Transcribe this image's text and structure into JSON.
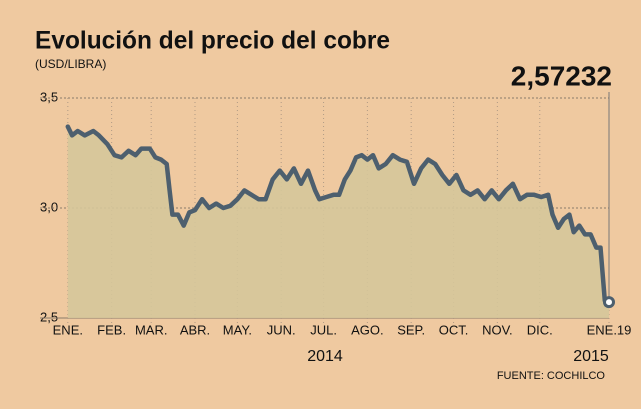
{
  "chart_data": {
    "type": "area",
    "title": "Evolución del precio del cobre",
    "subtitle": "(USD/LIBRA)",
    "source": "FUENTE: COCHILCO",
    "year_labels": [
      "2014",
      "2015"
    ],
    "color": "#4d5f6e",
    "fill": "#d5c69a",
    "grid": true,
    "x": [
      0,
      3,
      7,
      12,
      18,
      22,
      28,
      33,
      38,
      43,
      48,
      52,
      58,
      62,
      66,
      70,
      72,
      74,
      78,
      82,
      86,
      90,
      95,
      100,
      105,
      110,
      115,
      120,
      125,
      130,
      135,
      140,
      145,
      150,
      155,
      160,
      165,
      170,
      175,
      178,
      183,
      188,
      192,
      196,
      200,
      204,
      208,
      212,
      216,
      220,
      225,
      230,
      235,
      240,
      245,
      250,
      255,
      260,
      265,
      270,
      275,
      280,
      285,
      290,
      295,
      300,
      305,
      310,
      315,
      320,
      325,
      330,
      335,
      340,
      343,
      347,
      351,
      355,
      358,
      362,
      366,
      370,
      374,
      377,
      380,
      381,
      383
    ],
    "values": [
      3.37,
      3.33,
      3.35,
      3.33,
      3.35,
      3.33,
      3.29,
      3.24,
      3.23,
      3.26,
      3.24,
      3.27,
      3.27,
      3.23,
      3.22,
      3.2,
      3.08,
      2.97,
      2.97,
      2.92,
      2.98,
      2.99,
      3.04,
      3.0,
      3.02,
      3.0,
      3.01,
      3.04,
      3.08,
      3.06,
      3.04,
      3.04,
      3.13,
      3.17,
      3.13,
      3.18,
      3.11,
      3.17,
      3.08,
      3.04,
      3.05,
      3.06,
      3.06,
      3.13,
      3.17,
      3.23,
      3.24,
      3.22,
      3.24,
      3.18,
      3.2,
      3.24,
      3.22,
      3.21,
      3.11,
      3.18,
      3.22,
      3.2,
      3.15,
      3.11,
      3.15,
      3.08,
      3.06,
      3.08,
      3.04,
      3.08,
      3.04,
      3.08,
      3.11,
      3.04,
      3.06,
      3.06,
      3.05,
      3.06,
      2.97,
      2.91,
      2.95,
      2.97,
      2.89,
      2.92,
      2.88,
      2.88,
      2.82,
      2.82,
      2.58,
      2.56,
      2.57232
    ],
    "value_labels": [
      null,
      null,
      null,
      null,
      null,
      null,
      null,
      null,
      null,
      null,
      null,
      null,
      null,
      null,
      null,
      null,
      null,
      null,
      null,
      null,
      null,
      null,
      null,
      null,
      null,
      null,
      null,
      null,
      null,
      null,
      null,
      null,
      null,
      null,
      null,
      null,
      null,
      null,
      null,
      null,
      null,
      null,
      null,
      null,
      null,
      null,
      null,
      null,
      null,
      null,
      null,
      null,
      null,
      null,
      null,
      null,
      null,
      null,
      null,
      null,
      null,
      null,
      null,
      null,
      null,
      null,
      null,
      null,
      null,
      null,
      null,
      null,
      null,
      null,
      null,
      null,
      null,
      null,
      null,
      null,
      null,
      null,
      null,
      null,
      null,
      null,
      "2,57232"
    ],
    "xlim": [
      -2,
      383
    ],
    "xticks": [
      {
        "value": 0,
        "label": "ENE."
      },
      {
        "value": 31,
        "label": "FEB."
      },
      {
        "value": 59,
        "label": "MAR."
      },
      {
        "value": 90,
        "label": "ABR."
      },
      {
        "value": 120,
        "label": "MAY."
      },
      {
        "value": 151,
        "label": "JUN."
      },
      {
        "value": 181,
        "label": "JUL."
      },
      {
        "value": 212,
        "label": "AGO."
      },
      {
        "value": 243,
        "label": "SEP."
      },
      {
        "value": 273,
        "label": "OCT."
      },
      {
        "value": 304,
        "label": "NOV."
      },
      {
        "value": 334,
        "label": "DIC."
      },
      {
        "value": 383,
        "label": "ENE.19"
      }
    ],
    "ylim": [
      2.5,
      3.5
    ],
    "yticks": [
      {
        "value": 2.5,
        "label": "2,5"
      },
      {
        "value": 3.0,
        "label": "3,0"
      },
      {
        "value": 3.5,
        "label": "3,5"
      }
    ]
  }
}
